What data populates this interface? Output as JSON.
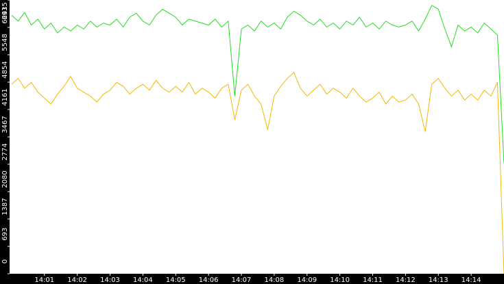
{
  "chart_data": {
    "type": "line",
    "x": [
      0,
      0.2,
      0.4,
      0.6,
      0.8,
      1,
      1.2,
      1.4,
      1.6,
      1.8,
      2,
      2.2,
      2.4,
      2.6,
      2.8,
      3,
      3.2,
      3.4,
      3.6,
      3.8,
      4,
      4.2,
      4.4,
      4.6,
      4.8,
      5,
      5.2,
      5.4,
      5.6,
      5.8,
      6,
      6.2,
      6.4,
      6.6,
      6.8,
      7,
      7.2,
      7.4,
      7.6,
      7.8,
      8,
      8.2,
      8.4,
      8.6,
      8.8,
      9,
      9.2,
      9.4,
      9.6,
      9.8,
      10,
      10.2,
      10.4,
      10.6,
      10.8,
      11,
      11.2,
      11.4,
      11.6,
      11.8,
      12,
      12.2,
      12.4,
      12.6,
      12.8,
      13,
      13.2,
      13.4,
      13.6,
      13.8,
      14,
      14.2,
      14.4,
      14.6,
      14.8,
      15
    ],
    "series": [
      {
        "color": "#22dd22",
        "values": [
          6550,
          6400,
          6620,
          6300,
          6450,
          6200,
          6350,
          6100,
          6250,
          6150,
          6300,
          6200,
          6400,
          6250,
          6350,
          6300,
          6450,
          6250,
          6500,
          6600,
          6400,
          6300,
          6550,
          6700,
          6600,
          6500,
          6300,
          6450,
          6400,
          6350,
          6300,
          6450,
          6250,
          6400,
          4500,
          6200,
          6300,
          6150,
          6400,
          6250,
          6350,
          6200,
          6500,
          6650,
          6550,
          6400,
          6300,
          6450,
          6250,
          6350,
          6200,
          6400,
          6300,
          6500,
          6250,
          6350,
          6200,
          6400,
          6300,
          6250,
          6300,
          6400,
          6150,
          6450,
          6800,
          6700,
          6200,
          5750,
          6300,
          6150,
          6250,
          6100,
          6350,
          6200,
          6050,
          2800
        ]
      },
      {
        "color": "#f5b800",
        "values": [
          4800,
          4950,
          4700,
          4850,
          4600,
          4450,
          4300,
          4550,
          4750,
          5000,
          4700,
          4600,
          4500,
          4350,
          4550,
          4650,
          4850,
          4750,
          4550,
          4700,
          4800,
          4650,
          4900,
          4700,
          4600,
          4750,
          4600,
          4850,
          4550,
          4700,
          4600,
          4450,
          4700,
          4800,
          3900,
          4650,
          4800,
          4500,
          4300,
          3650,
          4500,
          4750,
          4950,
          5100,
          4700,
          4500,
          4650,
          4800,
          4550,
          4700,
          4600,
          4450,
          4700,
          4500,
          4350,
          4450,
          4600,
          4300,
          4500,
          4350,
          4400,
          4550,
          4300,
          3600,
          4800,
          4950,
          4700,
          4500,
          4650,
          4400,
          4550,
          4400,
          4650,
          4500,
          4850,
          0
        ]
      }
    ],
    "xlim": [
      -0.06,
      15
    ],
    "xticks": [
      {
        "value": 1,
        "label": "14:01"
      },
      {
        "value": 2,
        "label": "14:02"
      },
      {
        "value": 3,
        "label": "14:03"
      },
      {
        "value": 4,
        "label": "14:04"
      },
      {
        "value": 5,
        "label": "14:05"
      },
      {
        "value": 6,
        "label": "14:06"
      },
      {
        "value": 7,
        "label": "14:07"
      },
      {
        "value": 8,
        "label": "14:08"
      },
      {
        "value": 9,
        "label": "14:09"
      },
      {
        "value": 10,
        "label": "14:10"
      },
      {
        "value": 11,
        "label": "14:11"
      },
      {
        "value": 12,
        "label": "14:12"
      },
      {
        "value": 13,
        "label": "14:13"
      },
      {
        "value": 14,
        "label": "14:14"
      }
    ],
    "ylim": [
      0,
      6935
    ],
    "yticks": [
      0,
      693,
      1387,
      2080,
      2774,
      3467,
      4161,
      4854,
      5548,
      6241,
      6935
    ]
  }
}
